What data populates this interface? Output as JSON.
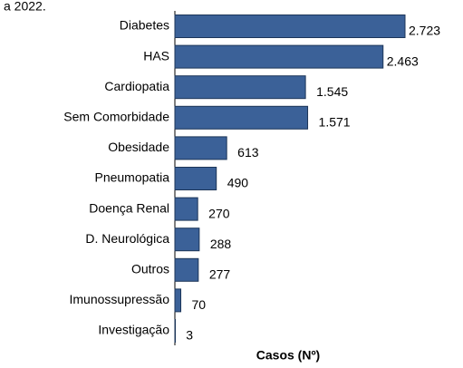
{
  "chart_data": {
    "type": "bar",
    "orientation": "horizontal",
    "title": "a 2022.",
    "x_label": "Casos (Nº)",
    "categories": [
      "Diabetes",
      "HAS",
      "Cardiopatia",
      "Sem Comorbidade",
      "Obesidade",
      "Pneumopatia",
      "Doença Renal",
      "D. Neurológica",
      "Outros",
      "Imunossupressão",
      "Investigação"
    ],
    "values": [
      2723,
      2463,
      1545,
      1571,
      613,
      490,
      270,
      288,
      277,
      70,
      3
    ],
    "value_labels": [
      "2.723",
      "2.463",
      "1.545",
      "1.571",
      "613",
      "490",
      "270",
      "288",
      "277",
      "70",
      "3"
    ],
    "color": "#3b6198"
  }
}
